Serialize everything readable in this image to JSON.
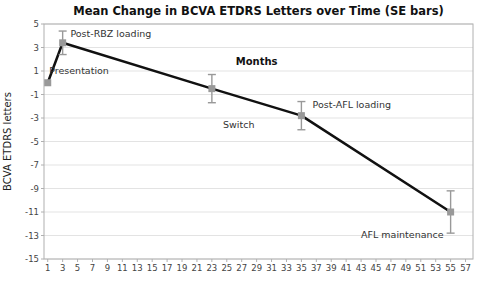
{
  "chart_data": {
    "type": "line",
    "title": "Mean Change in BCVA ETDRS Letters over Time (SE bars)",
    "y_label": "BCVA ETDRS letters",
    "x": [
      1,
      3,
      23,
      35,
      55
    ],
    "values": [
      0,
      3.4,
      -0.5,
      -2.8,
      -11.0
    ],
    "errors": [
      0,
      1.0,
      1.2,
      1.2,
      1.8
    ],
    "xlim": [
      0.5,
      58
    ],
    "ylim": [
      -15,
      5
    ],
    "xticks": [
      1,
      3,
      5,
      7,
      9,
      11,
      13,
      15,
      17,
      19,
      21,
      23,
      25,
      27,
      29,
      31,
      33,
      35,
      37,
      39,
      41,
      43,
      45,
      47,
      49,
      51,
      53,
      55,
      57
    ],
    "yticks": [
      -15,
      -13,
      -11,
      -9,
      -7,
      -5,
      -3,
      -1,
      1,
      3,
      5
    ],
    "grid": true,
    "color": "#111111",
    "marker": "square",
    "annotations": [
      {
        "text": "Months",
        "x": 29,
        "y": 1.3
      },
      {
        "text": "Post-RBZ loading",
        "x": 3.5,
        "y": 3.7
      },
      {
        "text": "Presentation",
        "x": 1.2,
        "y": 0.6
      },
      {
        "text": "Switch",
        "x": 24.5,
        "y": -3.2
      },
      {
        "text": "Post-AFL loading",
        "x": 36.5,
        "y": -2.3
      },
      {
        "text": "AFL maintenance",
        "x": 43.0,
        "y": -12.5
      }
    ]
  }
}
